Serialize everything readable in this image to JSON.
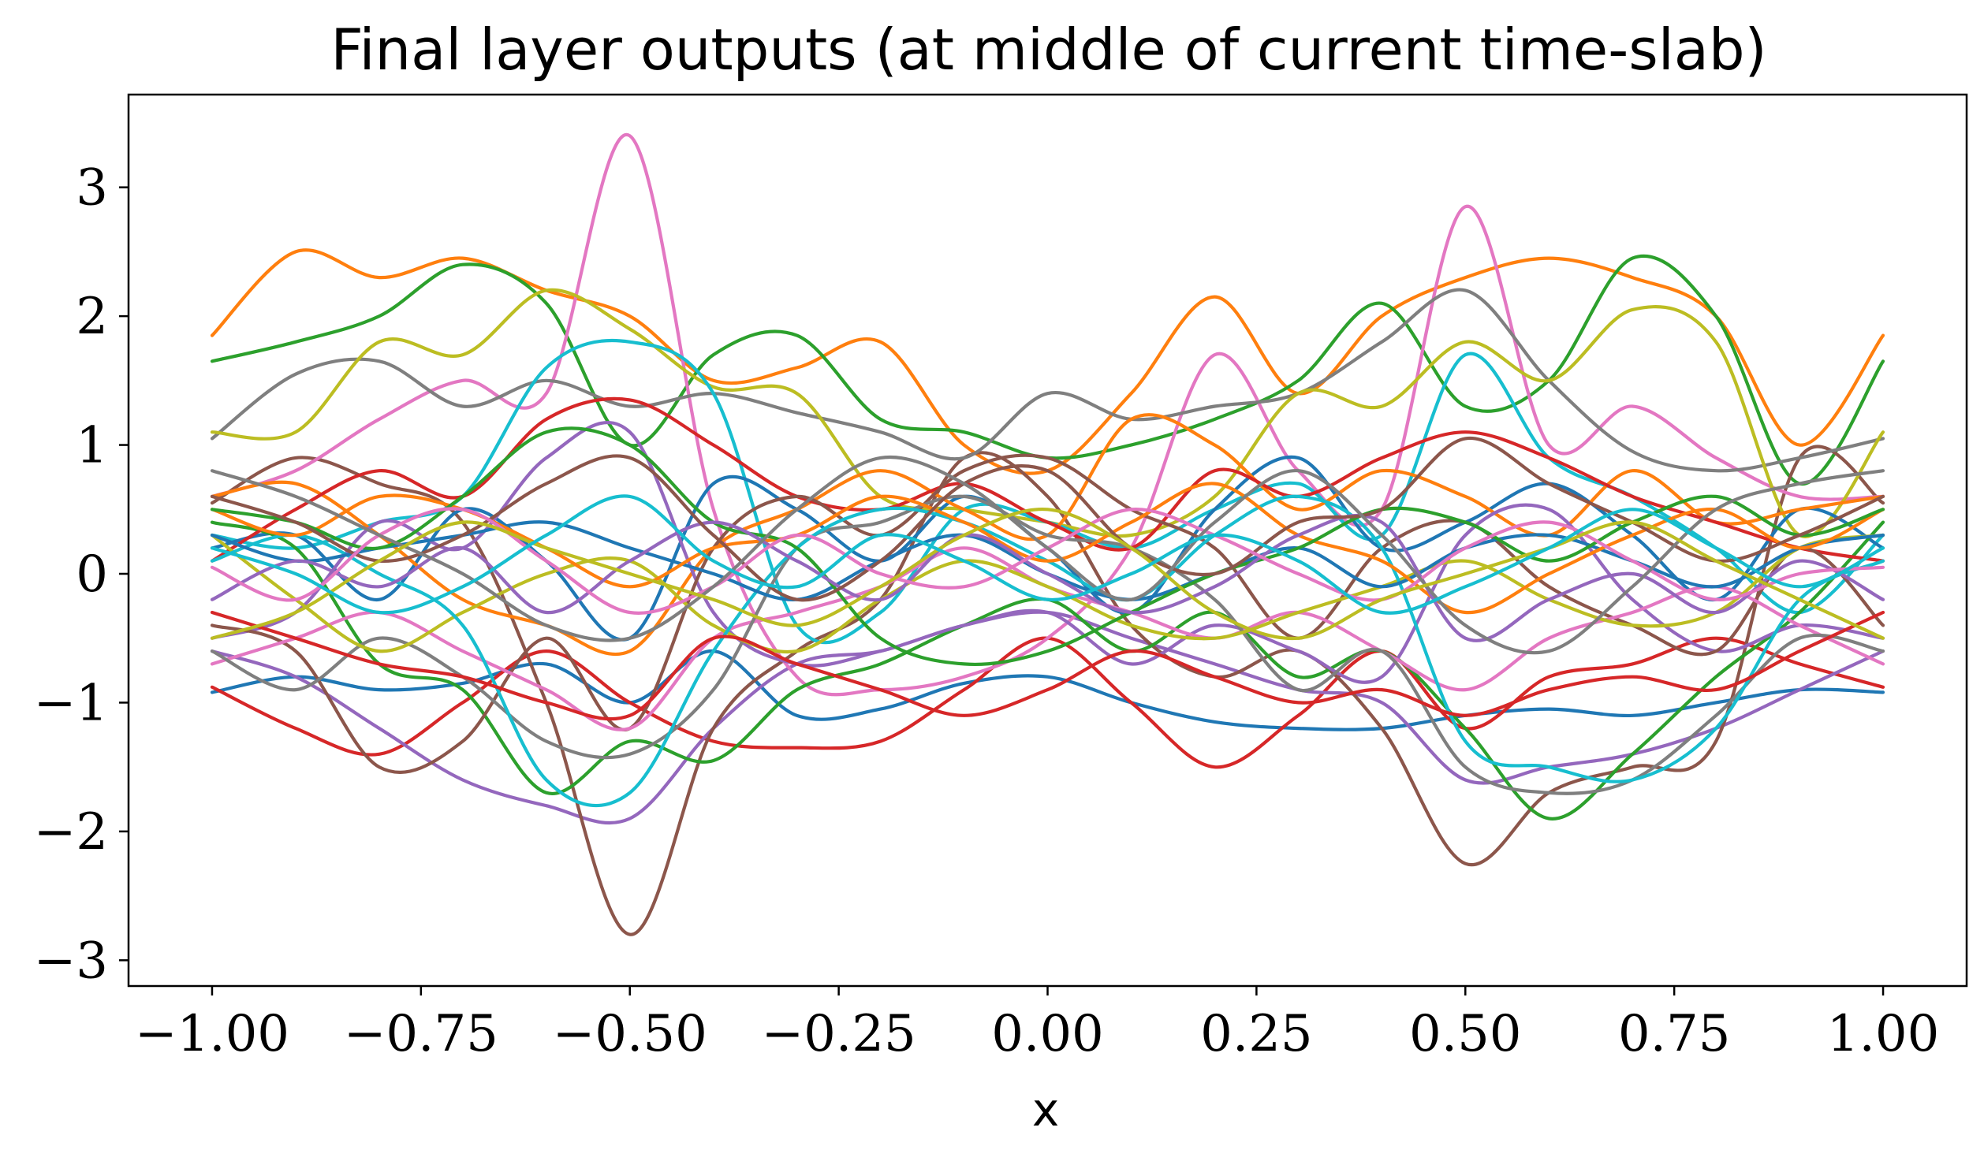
{
  "chart_data": {
    "type": "line",
    "title": "Final layer outputs (at middle of current time-slab)",
    "xlabel": "x",
    "ylabel": "",
    "xlim": [
      -1.1,
      1.1
    ],
    "ylim": [
      -3.2,
      3.72
    ],
    "xticks": [
      -1.0,
      -0.75,
      -0.5,
      -0.25,
      0.0,
      0.25,
      0.5,
      0.75,
      1.0
    ],
    "xtick_labels": [
      "−1.00",
      "−0.75",
      "−0.50",
      "−0.25",
      "0.00",
      "0.25",
      "0.50",
      "0.75",
      "1.00"
    ],
    "yticks": [
      -3,
      -2,
      -1,
      0,
      1,
      2,
      3
    ],
    "ytick_labels": [
      "−3",
      "−2",
      "−1",
      "0",
      "1",
      "2",
      "3"
    ],
    "grid": false,
    "legend": "none",
    "colors": [
      "#1f77b4",
      "#ff7f0e",
      "#2ca02c",
      "#d62728",
      "#9467bd",
      "#8c564b",
      "#e377c2",
      "#7f7f7f",
      "#bcbd22",
      "#17becf"
    ],
    "x": [
      -1.0,
      -0.9,
      -0.8,
      -0.7,
      -0.6,
      -0.5,
      -0.4,
      -0.3,
      -0.2,
      -0.1,
      0.0,
      0.1,
      0.2,
      0.3,
      0.4,
      0.5,
      0.6,
      0.7,
      0.8,
      0.9,
      1.0
    ],
    "series": [
      {
        "values": [
          -0.92,
          -0.8,
          -0.9,
          -0.85,
          -0.7,
          -1.0,
          -0.6,
          -1.1,
          -1.05,
          -0.85,
          -0.8,
          -1.0,
          -1.15,
          -1.2,
          -1.2,
          -1.1,
          -1.05,
          -1.1,
          -1.0,
          -0.9,
          -0.92
        ]
      },
      {
        "values": [
          1.85,
          2.5,
          2.3,
          2.45,
          2.2,
          2.0,
          1.5,
          1.6,
          1.8,
          1.0,
          0.8,
          1.4,
          2.15,
          1.4,
          2.0,
          2.3,
          2.45,
          2.3,
          2.0,
          1.0,
          1.85
        ]
      },
      {
        "values": [
          1.65,
          1.8,
          2.0,
          2.4,
          2.1,
          1.0,
          1.7,
          1.85,
          1.2,
          1.1,
          0.9,
          1.0,
          1.2,
          1.5,
          2.1,
          1.3,
          1.5,
          2.45,
          2.0,
          0.7,
          1.65
        ]
      },
      {
        "values": [
          -0.88,
          -1.2,
          -1.4,
          -1.0,
          -0.6,
          -1.0,
          -1.3,
          -1.35,
          -1.3,
          -0.9,
          -0.5,
          -1.0,
          -1.5,
          -1.1,
          -0.6,
          -1.2,
          -0.8,
          -0.7,
          -0.5,
          -0.7,
          -0.88
        ]
      },
      {
        "values": [
          -0.6,
          -0.8,
          -1.2,
          -1.6,
          -1.8,
          -1.9,
          -1.2,
          -0.7,
          -0.6,
          -0.4,
          -0.3,
          -0.5,
          -0.7,
          -0.9,
          -1.0,
          -1.6,
          -1.5,
          -1.4,
          -1.2,
          -0.9,
          -0.6
        ]
      },
      {
        "values": [
          0.55,
          0.9,
          0.7,
          0.4,
          -1.0,
          -2.8,
          -1.2,
          -0.6,
          -0.2,
          0.9,
          0.6,
          -0.4,
          -0.8,
          -0.6,
          -1.2,
          -2.25,
          -1.7,
          -1.5,
          -1.3,
          0.9,
          0.55
        ]
      },
      {
        "values": [
          0.6,
          0.8,
          1.2,
          1.5,
          1.4,
          3.4,
          0.5,
          -0.8,
          -0.9,
          -0.8,
          -0.5,
          0.2,
          1.7,
          0.8,
          0.5,
          2.85,
          1.0,
          1.3,
          0.9,
          0.6,
          0.6
        ]
      },
      {
        "values": [
          1.05,
          1.55,
          1.65,
          1.3,
          1.5,
          1.3,
          1.4,
          1.25,
          1.1,
          0.9,
          1.4,
          1.2,
          1.3,
          1.4,
          1.8,
          2.2,
          1.5,
          0.95,
          0.8,
          0.9,
          1.05
        ]
      },
      {
        "values": [
          1.1,
          1.1,
          1.8,
          1.7,
          2.2,
          1.9,
          1.45,
          1.4,
          0.6,
          0.5,
          0.4,
          0.3,
          0.6,
          1.4,
          1.3,
          1.8,
          1.5,
          2.05,
          1.8,
          0.3,
          1.1
        ]
      },
      {
        "values": [
          0.3,
          0.2,
          0.4,
          0.6,
          1.6,
          1.8,
          1.4,
          -0.4,
          -0.3,
          0.5,
          0.4,
          0.2,
          0.5,
          0.7,
          0.3,
          1.7,
          0.9,
          0.6,
          0.2,
          -0.3,
          0.3
        ]
      },
      {
        "values": [
          0.2,
          0.3,
          -0.2,
          0.5,
          0.1,
          -0.5,
          0.7,
          0.5,
          0.1,
          0.6,
          0.2,
          -0.3,
          0.5,
          0.9,
          0.2,
          0.4,
          0.7,
          0.3,
          -0.2,
          0.5,
          0.2
        ]
      },
      {
        "values": [
          0.6,
          0.7,
          0.3,
          -0.2,
          -0.4,
          -0.6,
          0.2,
          0.5,
          0.8,
          0.5,
          0.3,
          1.2,
          1.0,
          0.5,
          0.8,
          0.6,
          0.3,
          0.8,
          0.4,
          0.5,
          0.6
        ]
      },
      {
        "values": [
          0.4,
          0.2,
          -0.7,
          -0.9,
          -1.7,
          -1.3,
          -1.45,
          -0.9,
          -0.7,
          -0.4,
          -0.2,
          -0.6,
          -0.3,
          -0.8,
          -0.6,
          -1.2,
          -1.9,
          -1.4,
          -0.8,
          -0.3,
          0.4
        ]
      },
      {
        "values": [
          0.1,
          0.5,
          0.8,
          0.6,
          1.2,
          1.35,
          1.0,
          0.6,
          0.5,
          0.7,
          0.4,
          0.2,
          0.8,
          0.6,
          0.9,
          1.1,
          0.9,
          0.6,
          0.4,
          0.2,
          0.1
        ]
      },
      {
        "values": [
          -0.5,
          -0.3,
          0.4,
          0.2,
          0.9,
          1.1,
          -0.3,
          -0.7,
          -0.6,
          -0.4,
          -0.3,
          -0.7,
          -0.4,
          -0.6,
          -0.8,
          0.3,
          0.5,
          -0.2,
          -0.6,
          -0.4,
          -0.5
        ]
      },
      {
        "values": [
          -0.4,
          -0.6,
          -1.5,
          -1.3,
          -0.5,
          -1.2,
          0.2,
          0.6,
          0.3,
          0.8,
          0.9,
          0.5,
          0.2,
          -0.5,
          0.2,
          0.4,
          -0.1,
          -0.4,
          -0.6,
          0.2,
          -0.4
        ]
      },
      {
        "values": [
          -0.7,
          -0.5,
          -0.3,
          -0.6,
          -0.9,
          -1.2,
          -0.5,
          -0.3,
          -0.1,
          0.2,
          -0.1,
          -0.3,
          -0.5,
          -0.3,
          -0.6,
          -0.9,
          -0.5,
          -0.3,
          -0.1,
          -0.4,
          -0.7
        ]
      },
      {
        "values": [
          -0.6,
          -0.9,
          -0.5,
          -0.8,
          -1.3,
          -1.4,
          -0.9,
          0.2,
          0.4,
          0.6,
          0.3,
          0.2,
          -0.2,
          -0.9,
          -0.6,
          -1.5,
          -1.7,
          -1.6,
          -1.1,
          -0.5,
          -0.6
        ]
      },
      {
        "values": [
          0.3,
          -0.2,
          -0.6,
          -0.3,
          0.0,
          0.1,
          -0.4,
          -0.6,
          -0.2,
          0.1,
          -0.1,
          -0.4,
          -0.5,
          -0.3,
          -0.1,
          0.1,
          -0.2,
          -0.4,
          -0.3,
          0.2,
          0.3
        ]
      },
      {
        "values": [
          0.1,
          0.3,
          0.0,
          -0.4,
          -1.6,
          -1.7,
          -0.6,
          0.2,
          0.5,
          0.4,
          0.1,
          -0.2,
          0.3,
          0.6,
          0.2,
          -1.3,
          -1.5,
          -1.6,
          -1.2,
          -0.2,
          0.1
        ]
      },
      {
        "values": [
          0.3,
          0.1,
          0.2,
          0.3,
          0.4,
          0.2,
          0.0,
          -0.2,
          0.1,
          0.3,
          0.0,
          -0.2,
          0.0,
          0.2,
          -0.1,
          0.2,
          0.3,
          0.1,
          -0.1,
          0.2,
          0.3
        ]
      },
      {
        "values": [
          0.5,
          0.3,
          0.6,
          0.5,
          0.2,
          -0.1,
          0.2,
          0.3,
          0.6,
          0.4,
          0.1,
          0.4,
          0.7,
          0.3,
          0.1,
          -0.3,
          0.0,
          0.3,
          0.5,
          0.2,
          0.5
        ]
      },
      {
        "values": [
          0.5,
          0.4,
          0.2,
          0.6,
          1.1,
          1.0,
          0.4,
          0.2,
          -0.5,
          -0.7,
          -0.6,
          -0.3,
          0.0,
          0.2,
          0.5,
          0.4,
          0.1,
          0.4,
          0.6,
          0.3,
          0.5
        ]
      },
      {
        "values": [
          -0.3,
          -0.5,
          -0.7,
          -0.8,
          -1.0,
          -1.1,
          -0.5,
          -0.7,
          -0.9,
          -1.1,
          -0.9,
          -0.6,
          -0.8,
          -1.0,
          -0.9,
          -1.1,
          -0.9,
          -0.8,
          -0.9,
          -0.6,
          -0.3
        ]
      },
      {
        "values": [
          -0.2,
          0.1,
          -0.1,
          0.2,
          -0.3,
          0.1,
          0.4,
          0.1,
          -0.2,
          0.3,
          0.0,
          -0.3,
          -0.1,
          0.3,
          0.4,
          -0.5,
          -0.2,
          0.0,
          -0.3,
          0.1,
          -0.2
        ]
      },
      {
        "values": [
          0.6,
          0.4,
          0.1,
          0.3,
          0.7,
          0.9,
          0.3,
          -0.2,
          0.1,
          0.7,
          0.8,
          0.2,
          0.0,
          0.4,
          0.5,
          1.05,
          0.7,
          0.4,
          0.1,
          0.3,
          0.6
        ]
      },
      {
        "values": [
          0.05,
          -0.2,
          0.3,
          0.5,
          0.1,
          -0.3,
          -0.1,
          0.3,
          0.0,
          -0.1,
          0.2,
          0.5,
          0.3,
          0.0,
          -0.2,
          0.2,
          0.4,
          0.1,
          -0.2,
          0.0,
          0.05
        ]
      },
      {
        "values": [
          0.8,
          0.6,
          0.3,
          0.0,
          -0.4,
          -0.5,
          -0.1,
          0.5,
          0.9,
          0.7,
          0.2,
          -0.2,
          0.4,
          0.8,
          0.3,
          -0.4,
          -0.6,
          -0.1,
          0.5,
          0.7,
          0.8
        ]
      },
      {
        "values": [
          -0.5,
          -0.3,
          0.1,
          0.4,
          0.2,
          0.0,
          -0.2,
          -0.4,
          -0.1,
          0.3,
          0.5,
          0.2,
          -0.3,
          -0.5,
          -0.2,
          0.0,
          0.2,
          0.4,
          0.1,
          -0.2,
          -0.5
        ]
      },
      {
        "values": [
          0.2,
          0.0,
          -0.3,
          -0.1,
          0.3,
          0.6,
          0.1,
          -0.1,
          0.3,
          0.1,
          -0.2,
          0.0,
          0.3,
          0.1,
          -0.3,
          -0.1,
          0.2,
          0.5,
          0.2,
          -0.1,
          0.2
        ]
      }
    ]
  }
}
